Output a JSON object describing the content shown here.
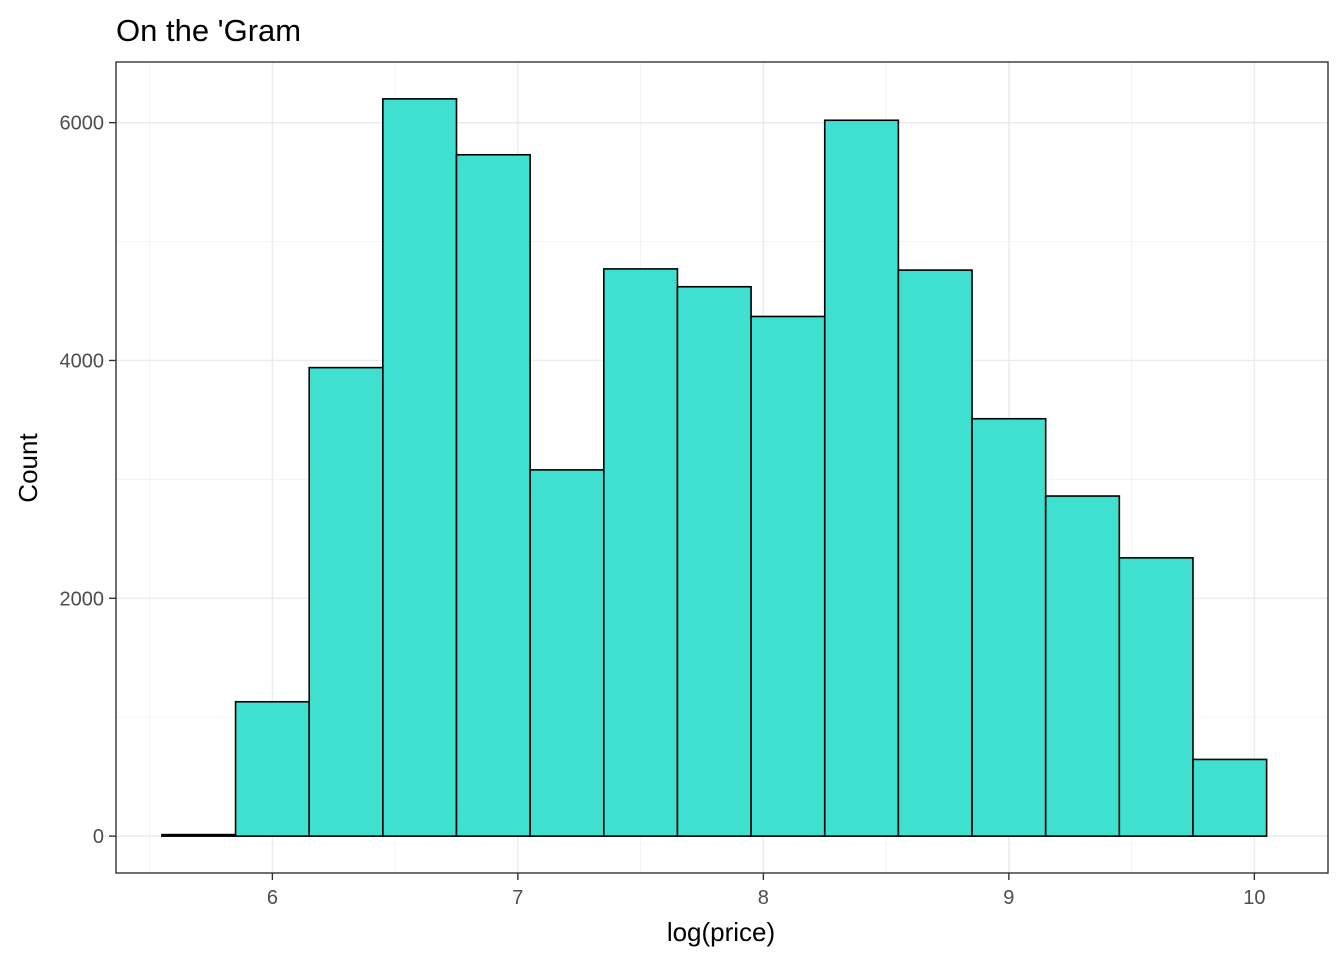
{
  "chart_data": {
    "type": "bar",
    "title": "On the 'Gram",
    "xlabel": "log(price)",
    "ylabel": "Count",
    "bin_width": 0.3,
    "bins": [
      {
        "x": 5.7,
        "count": 13
      },
      {
        "x": 6.0,
        "count": 1130
      },
      {
        "x": 6.3,
        "count": 3940
      },
      {
        "x": 6.6,
        "count": 6200
      },
      {
        "x": 6.9,
        "count": 5730
      },
      {
        "x": 7.2,
        "count": 3080
      },
      {
        "x": 7.5,
        "count": 4770
      },
      {
        "x": 7.8,
        "count": 4620
      },
      {
        "x": 8.1,
        "count": 4370
      },
      {
        "x": 8.4,
        "count": 6020
      },
      {
        "x": 8.7,
        "count": 4760
      },
      {
        "x": 9.0,
        "count": 3510
      },
      {
        "x": 9.3,
        "count": 2860
      },
      {
        "x": 9.6,
        "count": 2340
      },
      {
        "x": 9.9,
        "count": 645
      }
    ],
    "xlim": [
      5.363,
      10.3
    ],
    "ylim": [
      -310,
      6510
    ],
    "x_ticks": [
      6,
      7,
      8,
      9,
      10
    ],
    "x_tick_labels": [
      "6",
      "7",
      "8",
      "9",
      "10"
    ],
    "y_ticks": [
      0,
      2000,
      4000,
      6000
    ],
    "y_tick_labels": [
      "0",
      "2000",
      "4000",
      "6000"
    ],
    "x_minor_ticks": [
      5.5,
      6.5,
      7.5,
      8.5,
      9.5
    ],
    "y_minor_ticks": [
      1000,
      3000,
      5000
    ],
    "grid": true,
    "legend": "none",
    "colors": {
      "bar_fill": "#40E0D0",
      "bar_outline": "#000000",
      "panel_border": "#333333",
      "grid": "#ebebeb"
    }
  }
}
